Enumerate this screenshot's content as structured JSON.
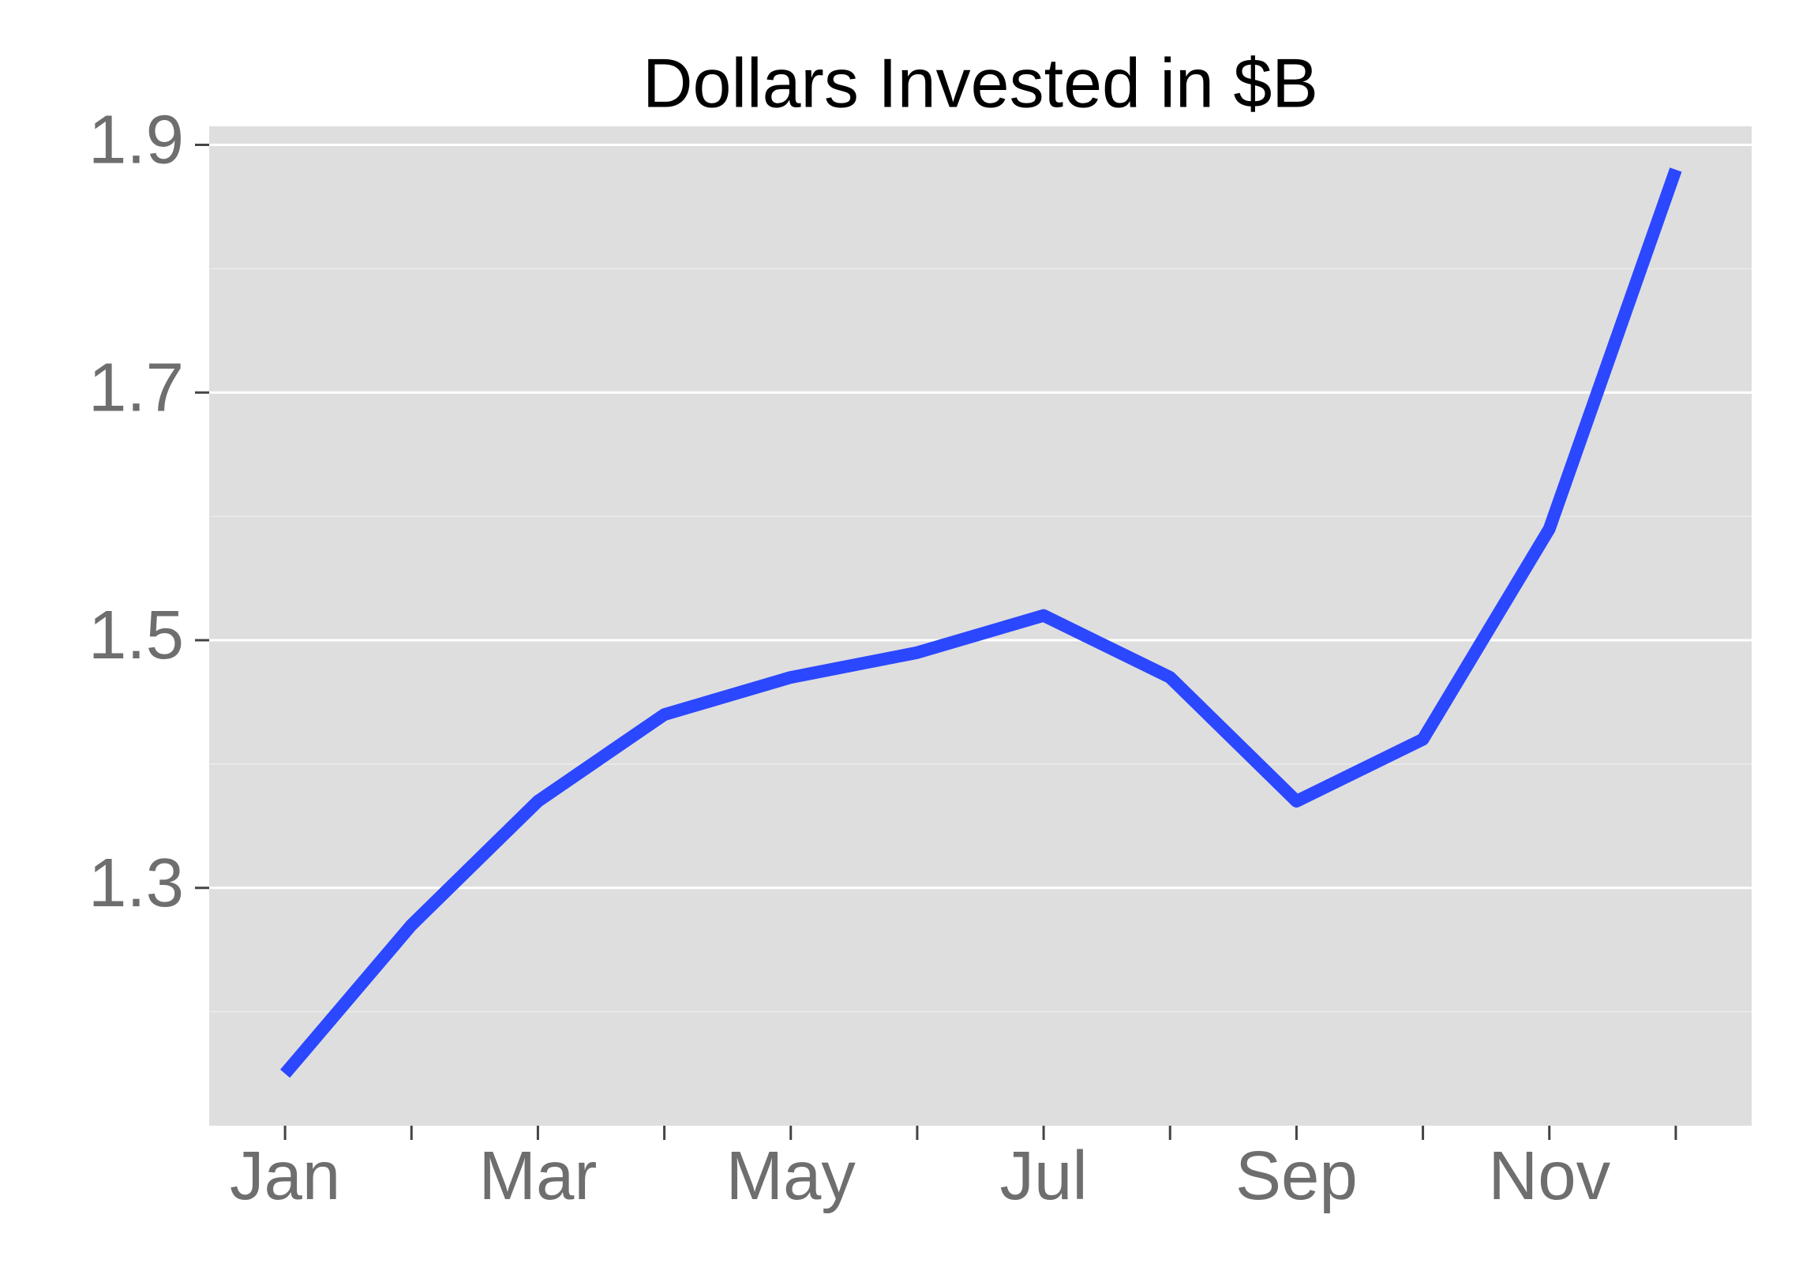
{
  "chart_data": {
    "type": "line",
    "title": "Dollars Invested in $B",
    "categories": [
      "Jan",
      null,
      "Mar",
      null,
      "May",
      null,
      "Jul",
      null,
      "Sep",
      null,
      "Nov",
      null
    ],
    "series": [
      {
        "name": "Dollars Invested",
        "color": "#2b47ff",
        "values": [
          1.15,
          1.27,
          1.37,
          1.44,
          1.47,
          1.49,
          1.52,
          1.47,
          1.37,
          1.42,
          1.59,
          1.88
        ]
      }
    ],
    "ylim": [
      1.108,
      1.915
    ],
    "yticks": [
      1.3,
      1.5,
      1.7,
      1.9
    ],
    "minor_grid": [
      1.2,
      1.4,
      1.6,
      1.8
    ],
    "grid": true
  }
}
